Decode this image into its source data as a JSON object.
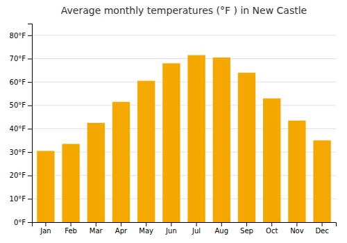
{
  "chart_data": {
    "type": "bar",
    "title": "Average monthly temperatures (°F ) in New Castle",
    "categories": [
      "Jan",
      "Feb",
      "Mar",
      "Apr",
      "May",
      "Jun",
      "Jul",
      "Aug",
      "Sep",
      "Oct",
      "Nov",
      "Dec"
    ],
    "values": [
      30.5,
      33.5,
      42.5,
      51.5,
      60.5,
      68.0,
      71.5,
      70.5,
      64.0,
      53.0,
      43.5,
      35.0
    ],
    "color": "#F5A800",
    "ylim": [
      0,
      85
    ],
    "yticks": [
      {
        "value": 0,
        "label": "0°F"
      },
      {
        "value": 10,
        "label": "10°F"
      },
      {
        "value": 20,
        "label": "20°F"
      },
      {
        "value": 30,
        "label": "30°F"
      },
      {
        "value": 40,
        "label": "40°F"
      },
      {
        "value": 50,
        "label": "50°F"
      },
      {
        "value": 60,
        "label": "60°F"
      },
      {
        "value": 70,
        "label": "70°F"
      },
      {
        "value": 80,
        "label": "80°F"
      }
    ],
    "grid": true
  }
}
